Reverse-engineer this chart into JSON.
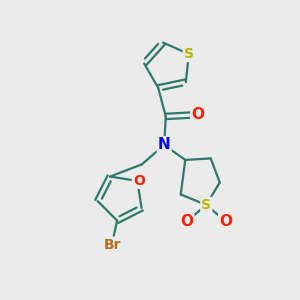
{
  "background_color": "#ebebeb",
  "atom_colors": {
    "C": "#2d7a6a",
    "S": "#b8b800",
    "O": "#ff2000",
    "N": "#0000ee",
    "Br": "#b87020"
  },
  "bond_color": "#2d7a6a",
  "line_width": 1.6,
  "font_size": 10
}
